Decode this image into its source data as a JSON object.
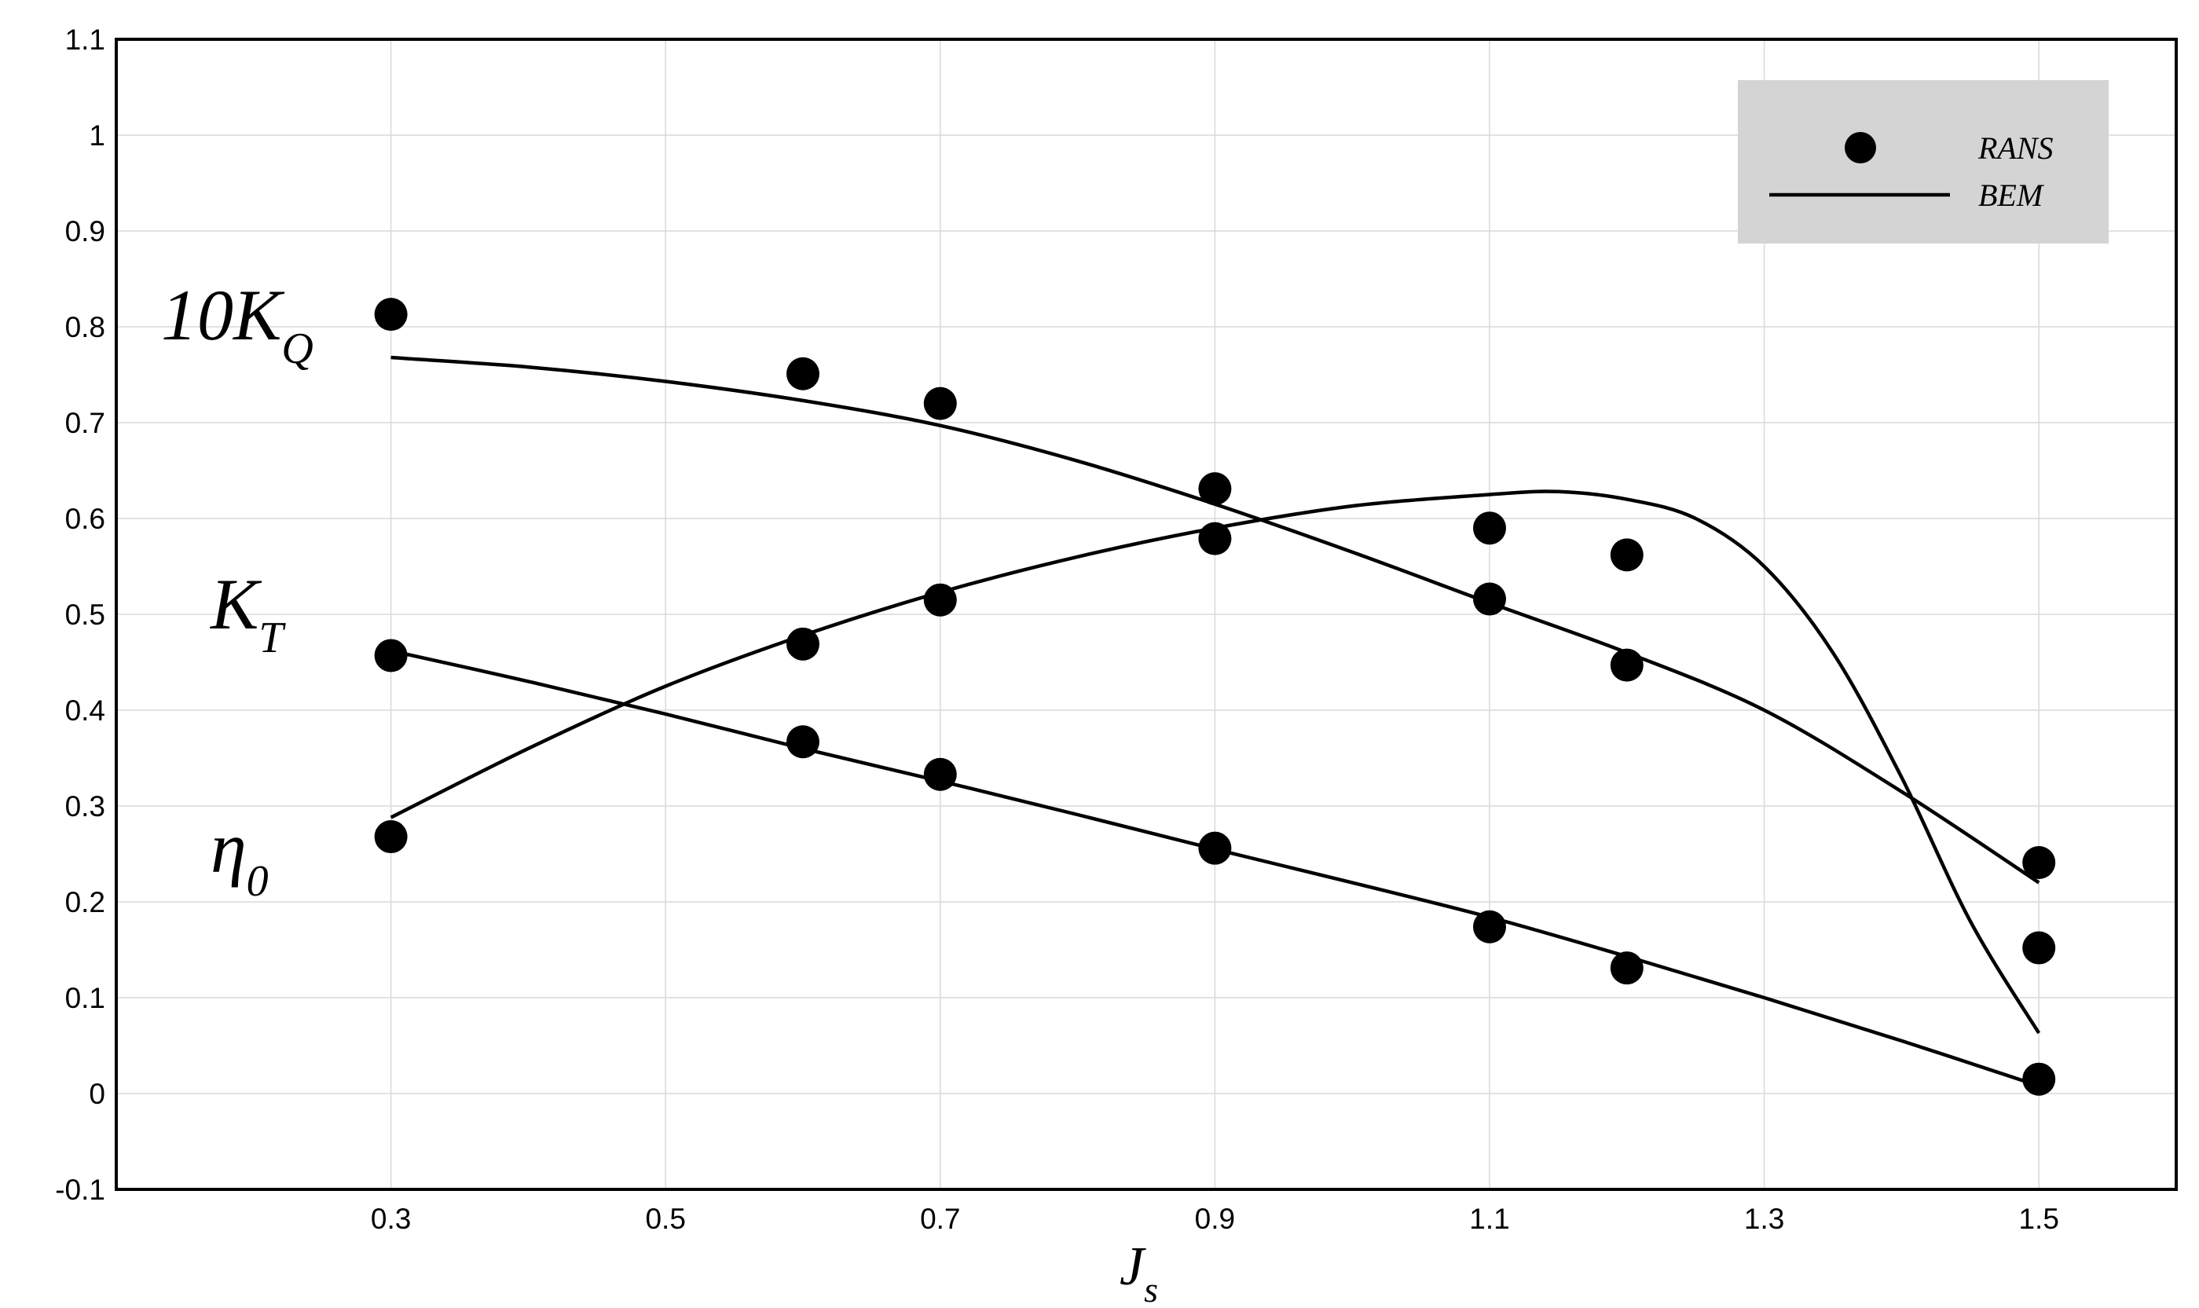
{
  "chart_data": {
    "type": "scatter",
    "xlabel": "J",
    "xlabel_sub": "s",
    "ylabel": "",
    "xlim": [
      0.1,
      1.6
    ],
    "ylim": [
      -0.1,
      1.1
    ],
    "x_ticks": [
      "0.3",
      "0.5",
      "0.7",
      "0.9",
      "1.1",
      "1.3",
      "1.5"
    ],
    "y_ticks": [
      "-0.1",
      "0",
      "0.1",
      "0.2",
      "0.3",
      "0.4",
      "0.5",
      "0.6",
      "0.7",
      "0.8",
      "0.9",
      "1",
      "1.1"
    ],
    "grid": true,
    "legend": {
      "position": "top-right",
      "entries": [
        {
          "name": "RANS",
          "marker": "filled-circle"
        },
        {
          "name": "BEM",
          "marker": "line"
        }
      ]
    },
    "curve_labels": [
      {
        "main": "10K",
        "sub": "Q",
        "series": "10KQ"
      },
      {
        "main": "K",
        "sub": "T",
        "series": "KT"
      },
      {
        "main": "η",
        "sub": "0",
        "series": "eta0"
      }
    ],
    "series": [
      {
        "key": "10KQ",
        "rans": {
          "x": [
            0.3,
            0.6,
            0.7,
            0.9,
            1.1,
            1.2,
            1.5
          ],
          "y": [
            0.813,
            0.751,
            0.72,
            0.631,
            0.516,
            0.447,
            0.241
          ]
        },
        "bem": {
          "x": [
            0.3,
            0.4,
            0.5,
            0.6,
            0.7,
            0.8,
            0.9,
            1.0,
            1.1,
            1.2,
            1.3,
            1.4,
            1.5
          ],
          "y": [
            0.768,
            0.758,
            0.743,
            0.723,
            0.697,
            0.66,
            0.615,
            0.565,
            0.512,
            0.46,
            0.4,
            0.315,
            0.22
          ]
        }
      },
      {
        "key": "eta0",
        "rans": {
          "x": [
            0.3,
            0.6,
            0.7,
            0.9,
            1.1,
            1.2,
            1.5
          ],
          "y": [
            0.268,
            0.469,
            0.515,
            0.579,
            0.59,
            0.562,
            0.152
          ]
        },
        "bem": {
          "x": [
            0.3,
            0.4,
            0.5,
            0.6,
            0.7,
            0.8,
            0.9,
            1.0,
            1.1,
            1.15,
            1.2,
            1.25,
            1.3,
            1.35,
            1.4,
            1.45,
            1.5
          ],
          "y": [
            0.288,
            0.36,
            0.425,
            0.478,
            0.523,
            0.56,
            0.59,
            0.613,
            0.625,
            0.628,
            0.62,
            0.6,
            0.55,
            0.46,
            0.33,
            0.18,
            0.063
          ]
        }
      },
      {
        "key": "KT",
        "rans": {
          "x": [
            0.3,
            0.6,
            0.7,
            0.9,
            1.1,
            1.2,
            1.5
          ],
          "y": [
            0.457,
            0.367,
            0.333,
            0.256,
            0.174,
            0.131,
            0.015
          ]
        },
        "bem": {
          "x": [
            0.3,
            0.4,
            0.5,
            0.6,
            0.7,
            0.8,
            0.9,
            1.0,
            1.1,
            1.2,
            1.3,
            1.4,
            1.5
          ],
          "y": [
            0.462,
            0.43,
            0.396,
            0.36,
            0.326,
            0.291,
            0.255,
            0.22,
            0.184,
            0.143,
            0.1,
            0.055,
            0.008
          ]
        }
      }
    ]
  }
}
